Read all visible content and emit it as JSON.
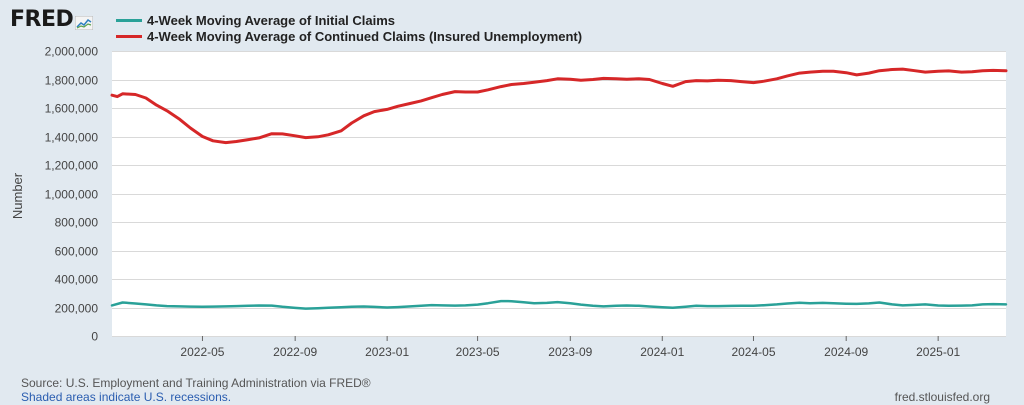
{
  "brand": {
    "logo_text": "FRED"
  },
  "footer": {
    "source": "Source: U.S. Employment and Training Administration via FRED®",
    "recession_note": "Shaded areas indicate U.S. recessions.",
    "site": "fred.stlouisfed.org"
  },
  "chart_data": {
    "type": "line",
    "title": "",
    "xlabel": "",
    "ylabel": "Number",
    "ylim": [
      0,
      2000000
    ],
    "y_ticks": [
      0,
      200000,
      400000,
      600000,
      800000,
      1000000,
      1200000,
      1400000,
      1600000,
      1800000,
      2000000
    ],
    "y_tick_labels": [
      "0",
      "200,000",
      "400,000",
      "600,000",
      "800,000",
      "1,000,000",
      "1,200,000",
      "1,400,000",
      "1,600,000",
      "1,800,000",
      "2,000,000"
    ],
    "xlim": [
      "2022-01-01",
      "2025-04-01"
    ],
    "x_ticks": [
      "2022-05-01",
      "2022-09-01",
      "2023-01-01",
      "2023-05-01",
      "2023-09-01",
      "2024-01-01",
      "2024-05-01",
      "2024-09-01",
      "2025-01-01"
    ],
    "x_tick_labels": [
      "2022-05",
      "2022-09",
      "2023-01",
      "2023-05",
      "2023-09",
      "2024-01",
      "2024-05",
      "2024-09",
      "2025-01"
    ],
    "grid": "horizontal",
    "legend_position": "top-left",
    "series": [
      {
        "name": "4-Week Moving Average of Initial Claims",
        "color": "#2aa198",
        "points": [
          [
            "2022-01-01",
            215000
          ],
          [
            "2022-01-15",
            235000
          ],
          [
            "2022-02-01",
            228000
          ],
          [
            "2022-02-15",
            222000
          ],
          [
            "2022-03-01",
            215000
          ],
          [
            "2022-03-15",
            210000
          ],
          [
            "2022-04-01",
            208000
          ],
          [
            "2022-04-15",
            206000
          ],
          [
            "2022-05-01",
            205000
          ],
          [
            "2022-05-15",
            206000
          ],
          [
            "2022-06-01",
            208000
          ],
          [
            "2022-06-15",
            210000
          ],
          [
            "2022-07-01",
            212000
          ],
          [
            "2022-07-15",
            214000
          ],
          [
            "2022-08-01",
            213000
          ],
          [
            "2022-08-15",
            205000
          ],
          [
            "2022-09-01",
            197000
          ],
          [
            "2022-09-15",
            192000
          ],
          [
            "2022-10-01",
            195000
          ],
          [
            "2022-10-15",
            198000
          ],
          [
            "2022-11-01",
            202000
          ],
          [
            "2022-11-15",
            205000
          ],
          [
            "2022-12-01",
            207000
          ],
          [
            "2022-12-15",
            204000
          ],
          [
            "2023-01-01",
            200000
          ],
          [
            "2023-01-15",
            203000
          ],
          [
            "2023-02-01",
            208000
          ],
          [
            "2023-02-15",
            212000
          ],
          [
            "2023-03-01",
            217000
          ],
          [
            "2023-03-15",
            215000
          ],
          [
            "2023-04-01",
            213000
          ],
          [
            "2023-04-15",
            215000
          ],
          [
            "2023-05-01",
            220000
          ],
          [
            "2023-05-15",
            230000
          ],
          [
            "2023-06-01",
            245000
          ],
          [
            "2023-06-15",
            244000
          ],
          [
            "2023-07-01",
            237000
          ],
          [
            "2023-07-15",
            230000
          ],
          [
            "2023-08-01",
            232000
          ],
          [
            "2023-08-15",
            238000
          ],
          [
            "2023-09-01",
            230000
          ],
          [
            "2023-09-15",
            220000
          ],
          [
            "2023-10-01",
            212000
          ],
          [
            "2023-10-15",
            208000
          ],
          [
            "2023-11-01",
            212000
          ],
          [
            "2023-11-15",
            214000
          ],
          [
            "2023-12-01",
            212000
          ],
          [
            "2023-12-15",
            207000
          ],
          [
            "2024-01-01",
            202000
          ],
          [
            "2024-01-15",
            198000
          ],
          [
            "2024-02-01",
            205000
          ],
          [
            "2024-02-15",
            212000
          ],
          [
            "2024-03-01",
            210000
          ],
          [
            "2024-03-15",
            210000
          ],
          [
            "2024-04-01",
            211000
          ],
          [
            "2024-04-15",
            212000
          ],
          [
            "2024-05-01",
            212000
          ],
          [
            "2024-05-15",
            216000
          ],
          [
            "2024-06-01",
            222000
          ],
          [
            "2024-06-15",
            228000
          ],
          [
            "2024-07-01",
            233000
          ],
          [
            "2024-07-15",
            230000
          ],
          [
            "2024-08-01",
            232000
          ],
          [
            "2024-08-15",
            230000
          ],
          [
            "2024-09-01",
            227000
          ],
          [
            "2024-09-15",
            225000
          ],
          [
            "2024-10-01",
            229000
          ],
          [
            "2024-10-15",
            235000
          ],
          [
            "2024-11-01",
            222000
          ],
          [
            "2024-11-15",
            215000
          ],
          [
            "2024-12-01",
            218000
          ],
          [
            "2024-12-15",
            222000
          ],
          [
            "2025-01-01",
            214000
          ],
          [
            "2025-01-15",
            212000
          ],
          [
            "2025-02-01",
            213000
          ],
          [
            "2025-02-15",
            215000
          ],
          [
            "2025-03-01",
            222000
          ],
          [
            "2025-03-15",
            224000
          ],
          [
            "2025-04-01",
            222000
          ]
        ]
      },
      {
        "name": "4-Week Moving Average of Continued Claims (Insured Unemployment)",
        "color": "#d62728",
        "points": [
          [
            "2022-01-01",
            1690000
          ],
          [
            "2022-01-08",
            1680000
          ],
          [
            "2022-01-15",
            1700000
          ],
          [
            "2022-02-01",
            1695000
          ],
          [
            "2022-02-15",
            1670000
          ],
          [
            "2022-03-01",
            1620000
          ],
          [
            "2022-03-15",
            1580000
          ],
          [
            "2022-04-01",
            1520000
          ],
          [
            "2022-04-15",
            1460000
          ],
          [
            "2022-05-01",
            1400000
          ],
          [
            "2022-05-15",
            1370000
          ],
          [
            "2022-06-01",
            1357000
          ],
          [
            "2022-06-15",
            1365000
          ],
          [
            "2022-07-01",
            1378000
          ],
          [
            "2022-07-15",
            1390000
          ],
          [
            "2022-08-01",
            1420000
          ],
          [
            "2022-08-15",
            1418000
          ],
          [
            "2022-09-01",
            1405000
          ],
          [
            "2022-09-15",
            1392000
          ],
          [
            "2022-10-01",
            1398000
          ],
          [
            "2022-10-15",
            1412000
          ],
          [
            "2022-11-01",
            1440000
          ],
          [
            "2022-11-15",
            1495000
          ],
          [
            "2022-12-01",
            1545000
          ],
          [
            "2022-12-15",
            1575000
          ],
          [
            "2023-01-01",
            1590000
          ],
          [
            "2023-01-15",
            1612000
          ],
          [
            "2023-02-01",
            1632000
          ],
          [
            "2023-02-15",
            1650000
          ],
          [
            "2023-03-01",
            1672000
          ],
          [
            "2023-03-15",
            1695000
          ],
          [
            "2023-04-01",
            1715000
          ],
          [
            "2023-04-15",
            1712000
          ],
          [
            "2023-05-01",
            1712000
          ],
          [
            "2023-05-15",
            1728000
          ],
          [
            "2023-06-01",
            1750000
          ],
          [
            "2023-06-15",
            1765000
          ],
          [
            "2023-07-01",
            1772000
          ],
          [
            "2023-07-15",
            1780000
          ],
          [
            "2023-08-01",
            1792000
          ],
          [
            "2023-08-15",
            1805000
          ],
          [
            "2023-09-01",
            1802000
          ],
          [
            "2023-09-15",
            1795000
          ],
          [
            "2023-10-01",
            1800000
          ],
          [
            "2023-10-15",
            1808000
          ],
          [
            "2023-11-01",
            1805000
          ],
          [
            "2023-11-15",
            1802000
          ],
          [
            "2023-12-01",
            1805000
          ],
          [
            "2023-12-15",
            1800000
          ],
          [
            "2024-01-01",
            1772000
          ],
          [
            "2024-01-15",
            1752000
          ],
          [
            "2024-02-01",
            1785000
          ],
          [
            "2024-02-15",
            1792000
          ],
          [
            "2024-03-01",
            1790000
          ],
          [
            "2024-03-15",
            1795000
          ],
          [
            "2024-04-01",
            1792000
          ],
          [
            "2024-04-15",
            1785000
          ],
          [
            "2024-05-01",
            1778000
          ],
          [
            "2024-05-15",
            1788000
          ],
          [
            "2024-06-01",
            1805000
          ],
          [
            "2024-06-15",
            1825000
          ],
          [
            "2024-07-01",
            1845000
          ],
          [
            "2024-07-15",
            1852000
          ],
          [
            "2024-08-01",
            1858000
          ],
          [
            "2024-08-15",
            1858000
          ],
          [
            "2024-09-01",
            1848000
          ],
          [
            "2024-09-15",
            1832000
          ],
          [
            "2024-10-01",
            1845000
          ],
          [
            "2024-10-15",
            1862000
          ],
          [
            "2024-11-01",
            1870000
          ],
          [
            "2024-11-15",
            1873000
          ],
          [
            "2024-12-01",
            1862000
          ],
          [
            "2024-12-15",
            1852000
          ],
          [
            "2025-01-01",
            1858000
          ],
          [
            "2025-01-15",
            1860000
          ],
          [
            "2025-02-01",
            1852000
          ],
          [
            "2025-02-15",
            1855000
          ],
          [
            "2025-03-01",
            1862000
          ],
          [
            "2025-03-15",
            1864000
          ],
          [
            "2025-04-01",
            1862000
          ]
        ]
      }
    ]
  }
}
